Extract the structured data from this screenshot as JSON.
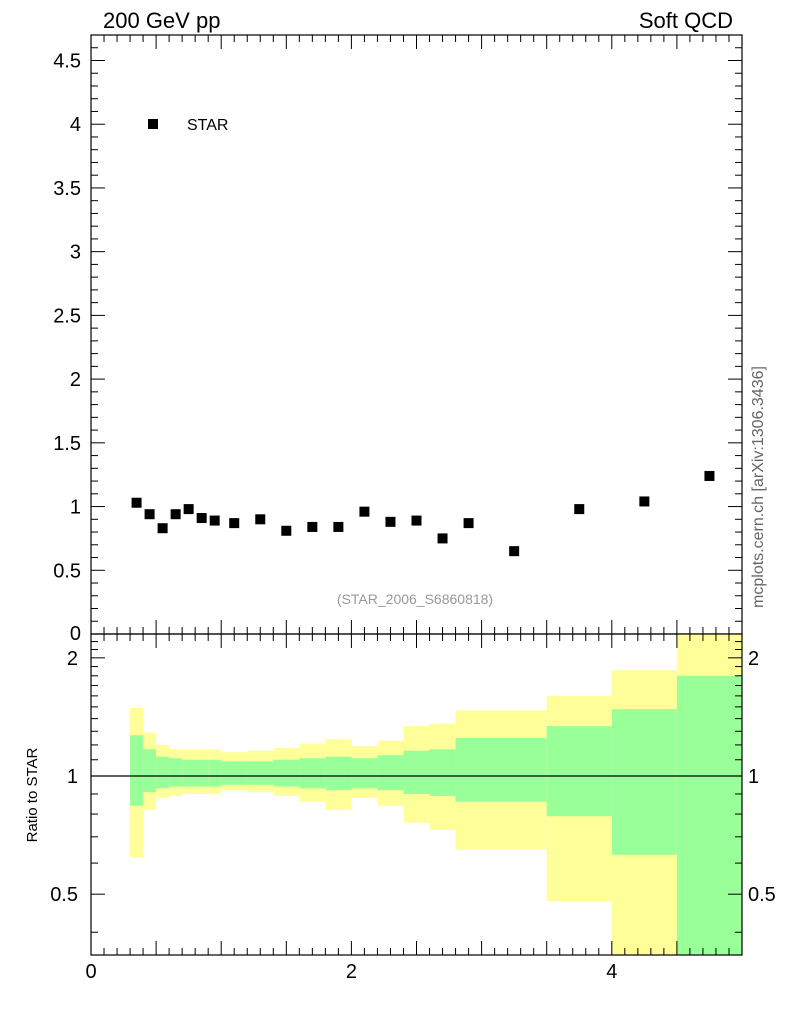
{
  "header": {
    "left_title": "200 GeV pp",
    "right_title": "Soft QCD"
  },
  "side_label": "mcplots.cern.ch [arXiv:1306.3436]",
  "colors": {
    "outer_band": "#ffff99",
    "inner_band": "#99ff99",
    "marker": "#000000",
    "ref_text": "#999999"
  },
  "chart_data": [
    {
      "type": "scatter",
      "name": "main-panel",
      "xlim": [
        0,
        5.0
      ],
      "ylim": [
        0,
        4.7
      ],
      "yticks": [
        0.5,
        1,
        1.5,
        2,
        2.5,
        3,
        3.5,
        4,
        4.5
      ],
      "ytick_labels": [
        "0.5",
        "1",
        "1.5",
        "2",
        "2.5",
        "3",
        "3.5",
        "4",
        "4.5"
      ],
      "bottom_clipped_label": "0",
      "legend": {
        "label": "STAR",
        "placement": "top-left"
      },
      "reference_id": "(STAR_2006_S6860818)",
      "series": [
        {
          "name": "STAR",
          "x": [
            0.35,
            0.45,
            0.55,
            0.65,
            0.75,
            0.85,
            0.95,
            1.1,
            1.3,
            1.5,
            1.7,
            1.9,
            2.1,
            2.3,
            2.5,
            2.7,
            2.9,
            3.25,
            3.75,
            4.25,
            4.75
          ],
          "y": [
            1.03,
            0.94,
            0.83,
            0.94,
            0.98,
            0.91,
            0.89,
            0.87,
            0.9,
            0.81,
            0.84,
            0.84,
            0.96,
            0.88,
            0.89,
            0.75,
            0.87,
            0.65,
            0.98,
            1.04,
            1.24
          ]
        }
      ]
    },
    {
      "type": "area",
      "name": "ratio-panel",
      "ylabel": "Ratio to STAR",
      "xlim": [
        0,
        5.0
      ],
      "ylim": [
        0.35,
        2.3
      ],
      "xticks": [
        0,
        2,
        4
      ],
      "xtick_labels": [
        "0",
        "2",
        "4"
      ],
      "yticks": [
        0.5,
        1,
        2
      ],
      "ytick_labels": [
        "0.5",
        "1",
        "2"
      ],
      "reference_line": 1,
      "bins": [
        {
          "lo": 0.3,
          "hi": 0.4,
          "inner": [
            0.84,
            1.27
          ],
          "outer": [
            0.62,
            1.49
          ]
        },
        {
          "lo": 0.4,
          "hi": 0.5,
          "inner": [
            0.91,
            1.17
          ],
          "outer": [
            0.82,
            1.29
          ]
        },
        {
          "lo": 0.5,
          "hi": 0.6,
          "inner": [
            0.93,
            1.12
          ],
          "outer": [
            0.88,
            1.2
          ]
        },
        {
          "lo": 0.6,
          "hi": 0.7,
          "inner": [
            0.94,
            1.11
          ],
          "outer": [
            0.89,
            1.17
          ]
        },
        {
          "lo": 0.7,
          "hi": 0.8,
          "inner": [
            0.94,
            1.1
          ],
          "outer": [
            0.9,
            1.17
          ]
        },
        {
          "lo": 0.8,
          "hi": 0.9,
          "inner": [
            0.94,
            1.1
          ],
          "outer": [
            0.9,
            1.17
          ]
        },
        {
          "lo": 0.9,
          "hi": 1.0,
          "inner": [
            0.94,
            1.1
          ],
          "outer": [
            0.9,
            1.17
          ]
        },
        {
          "lo": 1.0,
          "hi": 1.2,
          "inner": [
            0.95,
            1.09
          ],
          "outer": [
            0.92,
            1.15
          ]
        },
        {
          "lo": 1.2,
          "hi": 1.4,
          "inner": [
            0.95,
            1.09
          ],
          "outer": [
            0.91,
            1.16
          ]
        },
        {
          "lo": 1.4,
          "hi": 1.6,
          "inner": [
            0.94,
            1.1
          ],
          "outer": [
            0.89,
            1.18
          ]
        },
        {
          "lo": 1.6,
          "hi": 1.8,
          "inner": [
            0.93,
            1.11
          ],
          "outer": [
            0.86,
            1.21
          ]
        },
        {
          "lo": 1.8,
          "hi": 2.0,
          "inner": [
            0.92,
            1.12
          ],
          "outer": [
            0.82,
            1.24
          ]
        },
        {
          "lo": 2.0,
          "hi": 2.2,
          "inner": [
            0.93,
            1.11
          ],
          "outer": [
            0.88,
            1.19
          ]
        },
        {
          "lo": 2.2,
          "hi": 2.4,
          "inner": [
            0.92,
            1.13
          ],
          "outer": [
            0.84,
            1.23
          ]
        },
        {
          "lo": 2.4,
          "hi": 2.6,
          "inner": [
            0.9,
            1.16
          ],
          "outer": [
            0.76,
            1.34
          ]
        },
        {
          "lo": 2.6,
          "hi": 2.8,
          "inner": [
            0.89,
            1.17
          ],
          "outer": [
            0.73,
            1.36
          ]
        },
        {
          "lo": 2.8,
          "hi": 3.5,
          "inner": [
            0.86,
            1.25
          ],
          "outer": [
            0.65,
            1.47
          ]
        },
        {
          "lo": 3.5,
          "hi": 4.0,
          "inner": [
            0.79,
            1.34
          ],
          "outer": [
            0.48,
            1.6
          ]
        },
        {
          "lo": 4.0,
          "hi": 4.5,
          "inner": [
            0.63,
            1.48
          ],
          "outer": [
            0.35,
            1.86
          ]
        },
        {
          "lo": 4.5,
          "hi": 5.0,
          "inner": [
            0.35,
            1.8
          ],
          "outer": [
            0.35,
            2.3
          ]
        }
      ]
    }
  ]
}
